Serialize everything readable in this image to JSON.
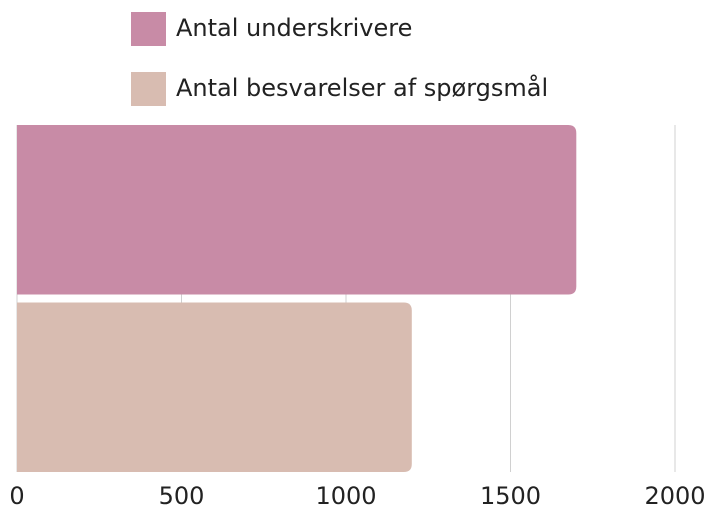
{
  "chart_data": {
    "type": "bar",
    "orientation": "horizontal",
    "categories": [
      null
    ],
    "series": [
      {
        "name": "Antal underskrivere",
        "color": "#c88ba6",
        "values": [
          1700
        ]
      },
      {
        "name": "Antal besvarelser af spørgsmål",
        "color": "#d8bcb1",
        "values": [
          1200
        ]
      }
    ],
    "xlim": [
      0,
      2000
    ],
    "xticks": [
      0,
      500,
      1000,
      1500,
      2000
    ],
    "grid": true
  }
}
